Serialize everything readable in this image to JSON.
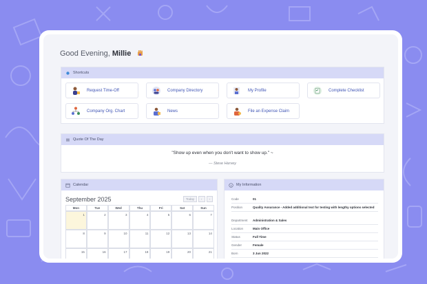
{
  "greeting": {
    "prefix": "Good Evening,",
    "name": "Millie"
  },
  "shortcuts": {
    "title": "Shortcuts",
    "items": [
      {
        "label": "Request Time-Off",
        "icon": "time-off-person-icon"
      },
      {
        "label": "Company Directory",
        "icon": "directory-people-icon"
      },
      {
        "label": "My Profile",
        "icon": "profile-person-icon"
      },
      {
        "label": "Complete Checklist",
        "icon": "checklist-icon"
      },
      {
        "label": "Company Org. Chart",
        "icon": "org-chart-icon"
      },
      {
        "label": "News",
        "icon": "news-person-icon"
      },
      {
        "label": "File an Expense Claim",
        "icon": "expense-claim-icon"
      }
    ]
  },
  "quote": {
    "title": "Quote Of The Day",
    "text": "\"Show up even when you don't want to show up.\" ~",
    "author": "— Steve Harvey"
  },
  "calendar": {
    "title": "Calendar",
    "month": "September 2025",
    "today_label": "Today",
    "prev": "‹",
    "next": "›",
    "weekdays": [
      "Mon",
      "Tue",
      "Wed",
      "Thu",
      "Fri",
      "Sat",
      "Sun"
    ],
    "weeks": [
      [
        "1",
        "2",
        "3",
        "4",
        "5",
        "6",
        "7"
      ],
      [
        "8",
        "9",
        "10",
        "11",
        "12",
        "13",
        "14"
      ],
      [
        "15",
        "16",
        "17",
        "18",
        "19",
        "20",
        "21"
      ]
    ]
  },
  "info": {
    "title": "My Information",
    "rows": [
      {
        "key": "Code",
        "value": "01"
      },
      {
        "key": "Position",
        "value": "Quality Assurance - Added additional text for testing with lengthy options selected"
      },
      {
        "key": "Department",
        "value": "Administration & Sales"
      },
      {
        "key": "Location",
        "value": "Main Office"
      },
      {
        "key": "Status",
        "value": "Full Time"
      },
      {
        "key": "Gender",
        "value": "Female"
      },
      {
        "key": "Born",
        "value": "3 Jun 2022"
      }
    ]
  },
  "colors": {
    "background": "#8a8cf0",
    "panel_header": "#d6d9f7",
    "link": "#3f54b5"
  }
}
